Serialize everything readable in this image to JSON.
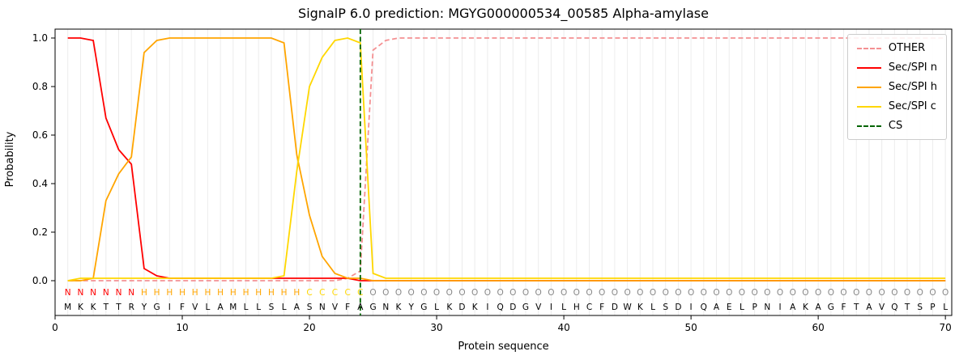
{
  "title": "SignalP 6.0 prediction: MGYG000000534_00585 Alpha-amylase",
  "xlabel": "Protein sequence",
  "ylabel": "Probability",
  "yticks": [
    0.0,
    0.2,
    0.4,
    0.6,
    0.8,
    1.0
  ],
  "xticks": [
    0,
    10,
    20,
    30,
    40,
    50,
    60,
    70
  ],
  "legend": {
    "position": "upper right",
    "entries": [
      {
        "label": "OTHER",
        "dashed": true
      },
      {
        "label": "Sec/SPI n",
        "dashed": false
      },
      {
        "label": "Sec/SPI h",
        "dashed": false
      },
      {
        "label": "Sec/SPI c",
        "dashed": false
      },
      {
        "label": "CS",
        "dashed": true
      }
    ]
  },
  "colors": {
    "OTHER": "#f49092",
    "Sec/SPI n": "#ff0000",
    "Sec/SPI h": "#ffa500",
    "Sec/SPI c": "#ffd700",
    "CS": "#006400",
    "grid": "#ececec",
    "frame": "#000000",
    "tick_text": "#000000",
    "region_N": "#ff0000",
    "region_H": "#ffa500",
    "region_C": "#ffd700",
    "region_O": "#888888",
    "sequence_letters": "#000000"
  },
  "chart_data": {
    "type": "line",
    "title": "SignalP 6.0 prediction: MGYG000000534_00585 Alpha-amylase",
    "xlabel": "Protein sequence",
    "ylabel": "Probability",
    "xlim": [
      0,
      70.5
    ],
    "ylim": [
      0,
      1
    ],
    "grid": "vertical line per residue position",
    "x_positions": {
      "start": 1,
      "end": 70,
      "step": 1
    },
    "cs_position": 24,
    "sequence": "MKKTTRYGIFVLAMLLSLASNVFAGNKYGLKDKIQDGVILHCFDWKLSDIQAELPNIAKAGFTAVQTSPL",
    "regions": "NNNNNNHHHHHHHHHHHHHCCCCCOOOOOOOOOOOOOOOOOOOOOOOOOOOOOOOOOOOOOOOOOOOOOO",
    "series": [
      {
        "name": "OTHER",
        "dashed": true,
        "values": [
          0,
          0,
          0,
          0,
          0,
          0,
          0,
          0,
          0,
          0,
          0,
          0,
          0,
          0,
          0,
          0,
          0,
          0,
          0,
          0,
          0,
          0,
          0.01,
          0.04,
          0.95,
          0.99,
          1,
          1,
          1,
          1,
          1,
          1,
          1,
          1,
          1,
          1,
          1,
          1,
          1,
          1,
          1,
          1,
          1,
          1,
          1,
          1,
          1,
          1,
          1,
          1,
          1,
          1,
          1,
          1,
          1,
          1,
          1,
          1,
          1,
          1,
          1,
          1,
          1,
          1,
          1,
          1,
          1,
          1,
          1,
          1
        ]
      },
      {
        "name": "Sec/SPI n",
        "dashed": false,
        "values": [
          1,
          1,
          0.99,
          0.67,
          0.54,
          0.48,
          0.05,
          0.02,
          0.01,
          0.01,
          0.01,
          0.01,
          0.01,
          0.01,
          0.01,
          0.01,
          0.01,
          0.01,
          0.01,
          0.01,
          0.01,
          0.01,
          0.01,
          0,
          0,
          0,
          0,
          0,
          0,
          0,
          0,
          0,
          0,
          0,
          0,
          0,
          0,
          0,
          0,
          0,
          0,
          0,
          0,
          0,
          0,
          0,
          0,
          0,
          0,
          0,
          0,
          0,
          0,
          0,
          0,
          0,
          0,
          0,
          0,
          0,
          0,
          0,
          0,
          0,
          0,
          0,
          0,
          0,
          0,
          0
        ]
      },
      {
        "name": "Sec/SPI h",
        "dashed": false,
        "values": [
          0,
          0,
          0.01,
          0.33,
          0.44,
          0.51,
          0.94,
          0.99,
          1,
          1,
          1,
          1,
          1,
          1,
          1,
          1,
          1,
          0.98,
          0.52,
          0.27,
          0.1,
          0.03,
          0.01,
          0.01,
          0,
          0,
          0,
          0,
          0,
          0,
          0,
          0,
          0,
          0,
          0,
          0,
          0,
          0,
          0,
          0,
          0,
          0,
          0,
          0,
          0,
          0,
          0,
          0,
          0,
          0,
          0,
          0,
          0,
          0,
          0,
          0,
          0,
          0,
          0,
          0,
          0,
          0,
          0,
          0,
          0,
          0,
          0,
          0,
          0,
          0
        ]
      },
      {
        "name": "Sec/SPI c",
        "dashed": false,
        "values": [
          0,
          0.01,
          0.01,
          0.01,
          0.01,
          0.01,
          0.01,
          0.01,
          0.01,
          0.01,
          0.01,
          0.01,
          0.01,
          0.01,
          0.01,
          0.01,
          0.01,
          0.02,
          0.45,
          0.8,
          0.92,
          0.99,
          1,
          0.98,
          0.03,
          0.01,
          0.01,
          0.01,
          0.01,
          0.01,
          0.01,
          0.01,
          0.01,
          0.01,
          0.01,
          0.01,
          0.01,
          0.01,
          0.01,
          0.01,
          0.01,
          0.01,
          0.01,
          0.01,
          0.01,
          0.01,
          0.01,
          0.01,
          0.01,
          0.01,
          0.01,
          0.01,
          0.01,
          0.01,
          0.01,
          0.01,
          0.01,
          0.01,
          0.01,
          0.01,
          0.01,
          0.01,
          0.01,
          0.01,
          0.01,
          0.01,
          0.01,
          0.01,
          0.01,
          0.01
        ]
      }
    ]
  }
}
